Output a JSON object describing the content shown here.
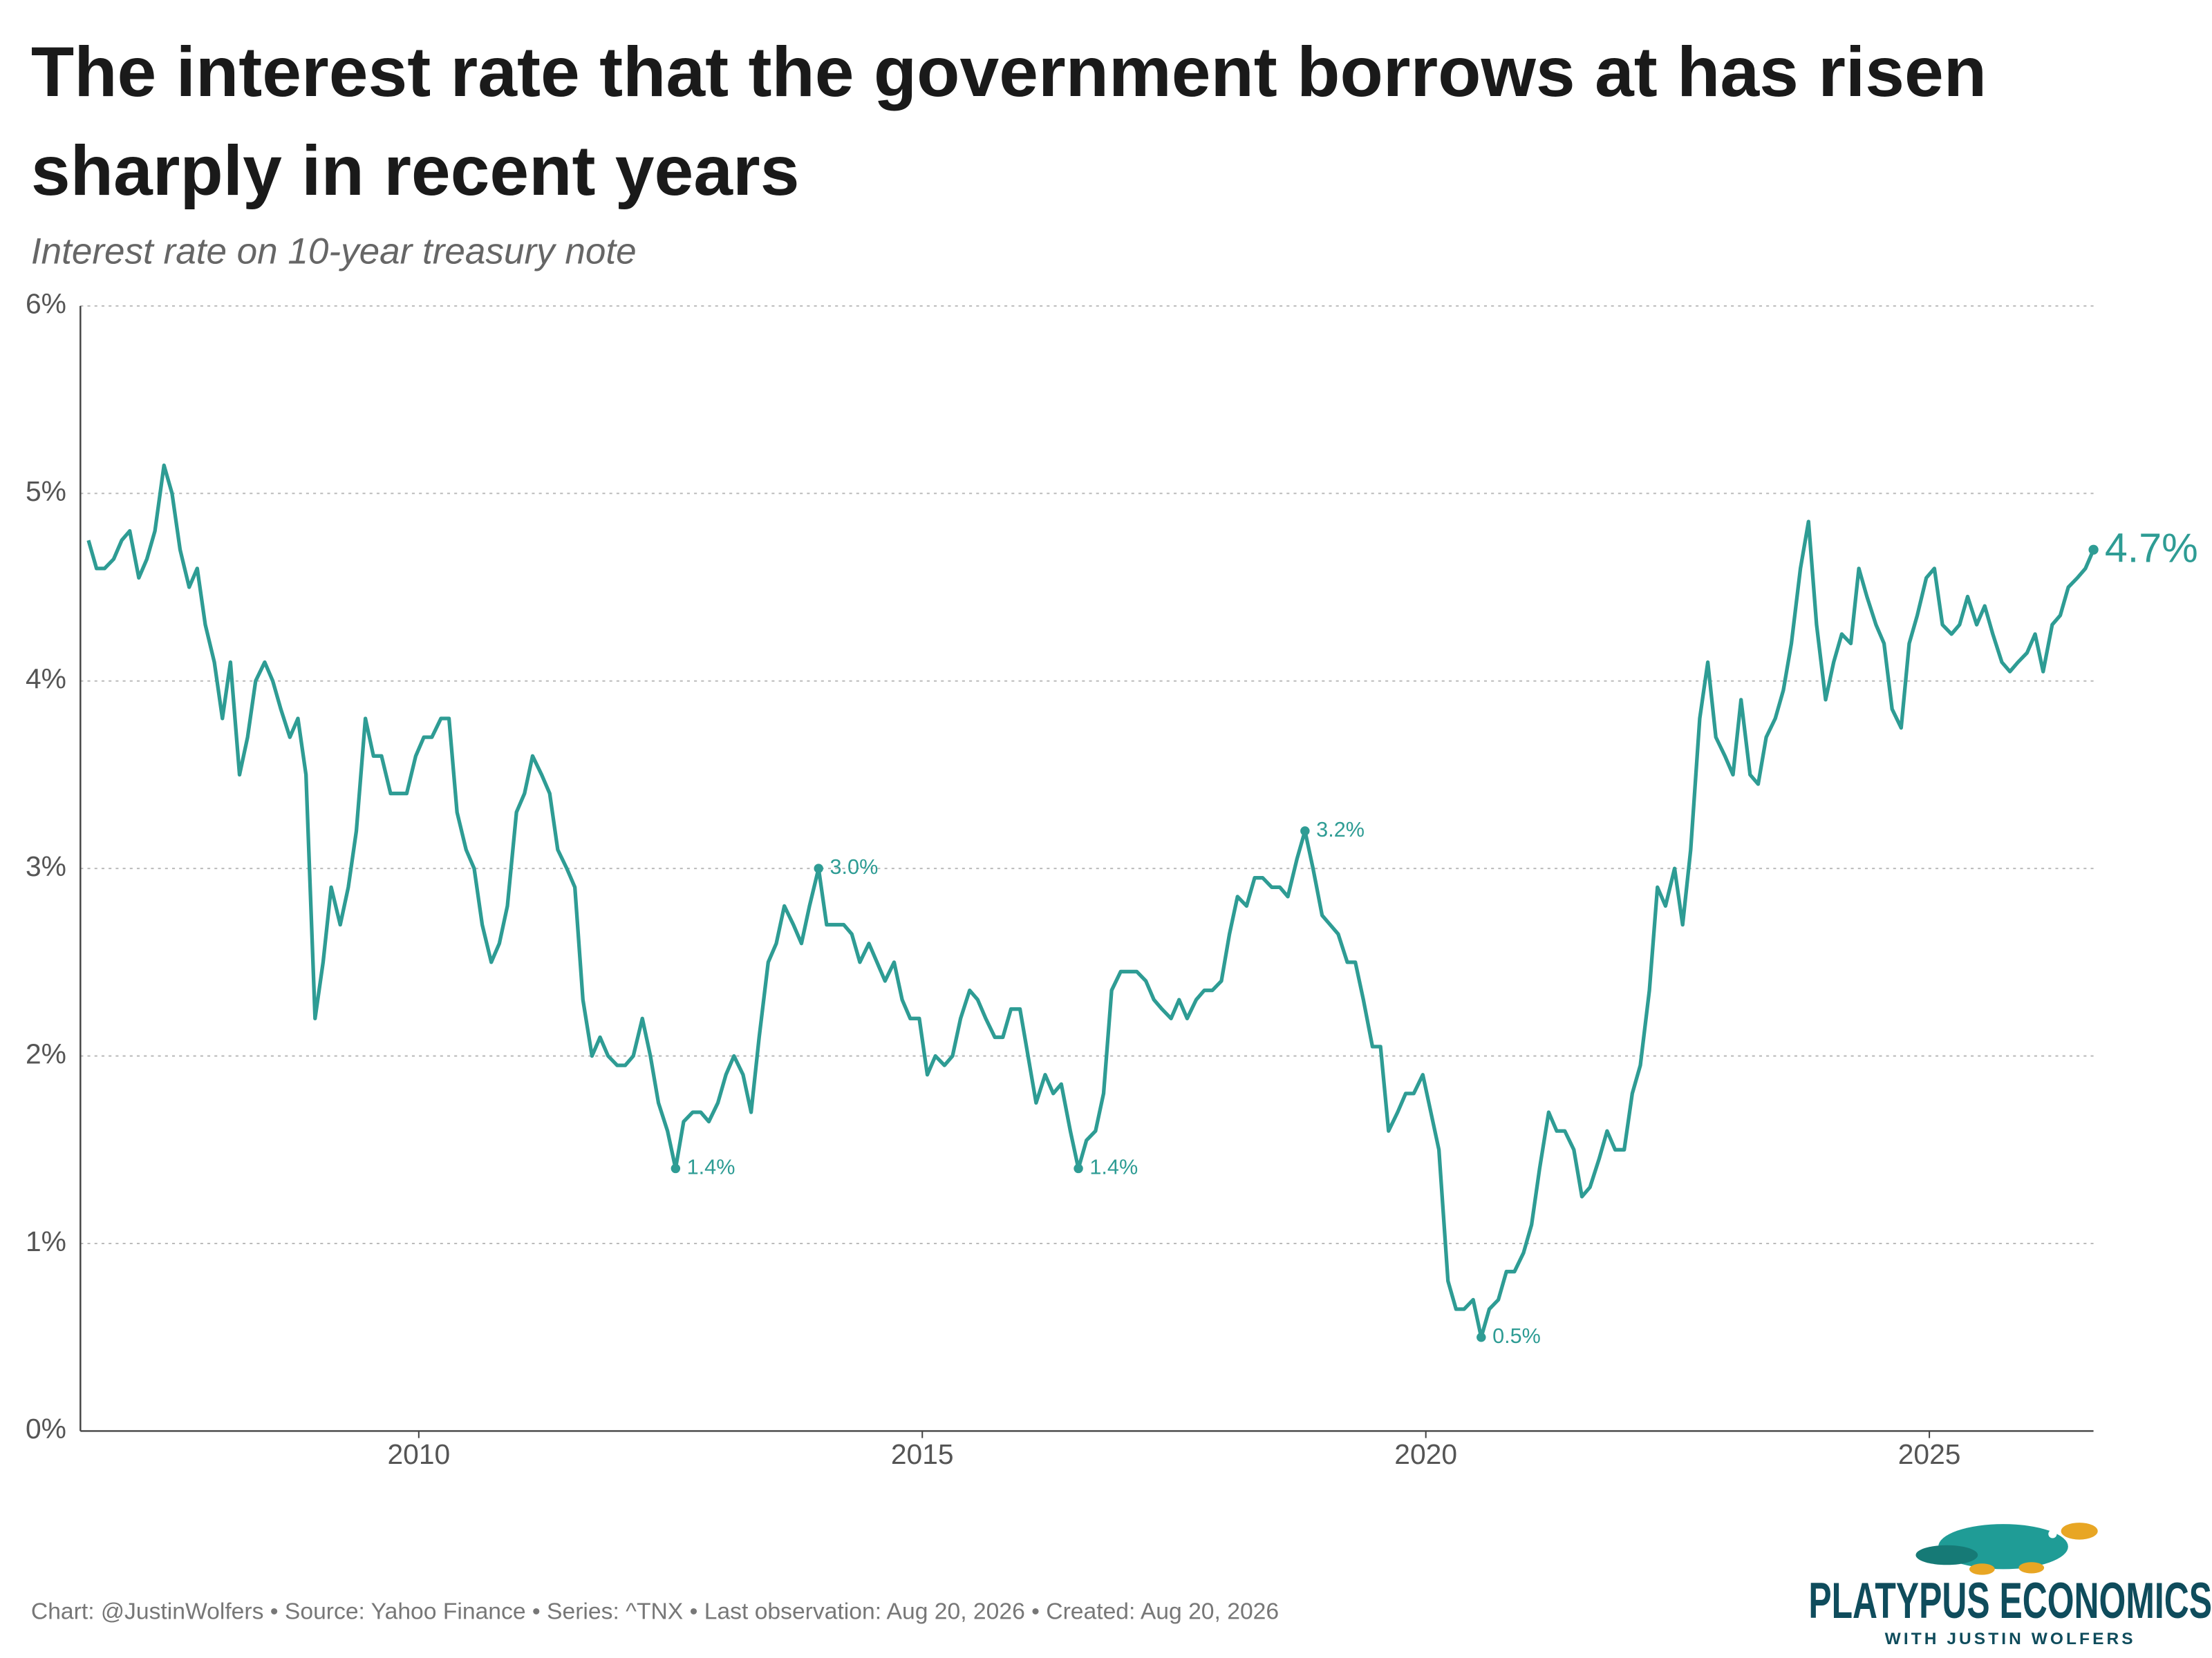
{
  "chart_data": {
    "type": "line",
    "title": "The interest rate that the government borrows at has risen sharply in recent years",
    "subtitle": "Interest rate on 10-year treasury note",
    "source": "Chart: @JustinWolfers • Source: Yahoo Finance • Series: ^TNX • Last observation: Aug 20, 2026 • Created: Aug 20, 2026",
    "brand": {
      "name": "PLATYPUS ECONOMICS",
      "tagline": "WITH JUSTIN WOLFERS"
    },
    "x": [
      2006.72,
      2006.8,
      2006.88,
      2006.97,
      2007.05,
      2007.13,
      2007.22,
      2007.3,
      2007.38,
      2007.47,
      2007.55,
      2007.63,
      2007.72,
      2007.8,
      2007.88,
      2007.97,
      2008.05,
      2008.13,
      2008.22,
      2008.3,
      2008.38,
      2008.47,
      2008.55,
      2008.63,
      2008.72,
      2008.8,
      2008.88,
      2008.97,
      2009.05,
      2009.13,
      2009.22,
      2009.3,
      2009.38,
      2009.47,
      2009.55,
      2009.63,
      2009.72,
      2009.8,
      2009.88,
      2009.97,
      2010.05,
      2010.13,
      2010.22,
      2010.3,
      2010.38,
      2010.47,
      2010.55,
      2010.63,
      2010.72,
      2010.8,
      2010.88,
      2010.97,
      2011.05,
      2011.13,
      2011.22,
      2011.3,
      2011.38,
      2011.47,
      2011.55,
      2011.63,
      2011.72,
      2011.8,
      2011.88,
      2011.97,
      2012.05,
      2012.13,
      2012.22,
      2012.3,
      2012.38,
      2012.47,
      2012.55,
      2012.63,
      2012.72,
      2012.8,
      2012.88,
      2012.97,
      2013.05,
      2013.13,
      2013.22,
      2013.3,
      2013.38,
      2013.47,
      2013.55,
      2013.63,
      2013.72,
      2013.8,
      2013.88,
      2013.97,
      2014.05,
      2014.13,
      2014.22,
      2014.3,
      2014.38,
      2014.47,
      2014.55,
      2014.63,
      2014.72,
      2014.8,
      2014.88,
      2014.97,
      2015.05,
      2015.13,
      2015.22,
      2015.3,
      2015.38,
      2015.47,
      2015.55,
      2015.63,
      2015.72,
      2015.8,
      2015.88,
      2015.97,
      2016.05,
      2016.13,
      2016.22,
      2016.3,
      2016.38,
      2016.47,
      2016.55,
      2016.63,
      2016.72,
      2016.8,
      2016.88,
      2016.97,
      2017.05,
      2017.13,
      2017.22,
      2017.3,
      2017.38,
      2017.47,
      2017.55,
      2017.63,
      2017.72,
      2017.8,
      2017.88,
      2017.97,
      2018.05,
      2018.13,
      2018.22,
      2018.3,
      2018.38,
      2018.47,
      2018.55,
      2018.63,
      2018.72,
      2018.8,
      2018.88,
      2018.97,
      2019.05,
      2019.13,
      2019.22,
      2019.3,
      2019.38,
      2019.47,
      2019.55,
      2019.63,
      2019.72,
      2019.8,
      2019.88,
      2019.97,
      2020.05,
      2020.13,
      2020.22,
      2020.3,
      2020.38,
      2020.47,
      2020.55,
      2020.63,
      2020.72,
      2020.8,
      2020.88,
      2020.97,
      2021.05,
      2021.13,
      2021.22,
      2021.3,
      2021.38,
      2021.47,
      2021.55,
      2021.63,
      2021.72,
      2021.8,
      2021.88,
      2021.97,
      2022.05,
      2022.13,
      2022.22,
      2022.3,
      2022.38,
      2022.47,
      2022.55,
      2022.63,
      2022.72,
      2022.8,
      2022.88,
      2022.97,
      2023.05,
      2023.13,
      2023.22,
      2023.3,
      2023.38,
      2023.47,
      2023.55,
      2023.63,
      2023.72,
      2023.8,
      2023.88,
      2023.97,
      2024.05,
      2024.13,
      2024.22,
      2024.3,
      2024.38,
      2024.47,
      2024.55,
      2024.63,
      2024.72,
      2024.8,
      2024.88,
      2024.97,
      2025.05,
      2025.13,
      2025.22,
      2025.3,
      2025.38,
      2025.47,
      2025.55,
      2025.63,
      2025.72,
      2025.8,
      2025.88,
      2025.97,
      2026.05,
      2026.13,
      2026.22,
      2026.3,
      2026.38,
      2026.47,
      2026.55,
      2026.63
    ],
    "series": [
      {
        "color": "#2e9c94",
        "values": [
          4.75,
          4.6,
          4.6,
          4.65,
          4.75,
          4.8,
          4.55,
          4.65,
          4.8,
          5.15,
          5.0,
          4.7,
          4.5,
          4.6,
          4.3,
          4.1,
          3.8,
          4.1,
          3.5,
          3.7,
          4.0,
          4.1,
          4.0,
          3.85,
          3.7,
          3.8,
          3.5,
          2.2,
          2.5,
          2.9,
          2.7,
          2.9,
          3.2,
          3.8,
          3.6,
          3.6,
          3.4,
          3.4,
          3.4,
          3.6,
          3.7,
          3.7,
          3.8,
          3.8,
          3.3,
          3.1,
          3.0,
          2.7,
          2.5,
          2.6,
          2.8,
          3.3,
          3.4,
          3.6,
          3.5,
          3.4,
          3.1,
          3.0,
          2.9,
          2.3,
          2.0,
          2.1,
          2.0,
          1.95,
          1.95,
          2.0,
          2.2,
          2.0,
          1.75,
          1.6,
          1.4,
          1.65,
          1.7,
          1.7,
          1.65,
          1.75,
          1.9,
          2.0,
          1.9,
          1.7,
          2.1,
          2.5,
          2.6,
          2.8,
          2.7,
          2.6,
          2.8,
          3.0,
          2.7,
          2.7,
          2.7,
          2.65,
          2.5,
          2.6,
          2.5,
          2.4,
          2.5,
          2.3,
          2.2,
          2.2,
          1.9,
          2.0,
          1.95,
          2.0,
          2.2,
          2.35,
          2.3,
          2.2,
          2.1,
          2.1,
          2.25,
          2.25,
          2.0,
          1.75,
          1.9,
          1.8,
          1.85,
          1.6,
          1.4,
          1.55,
          1.6,
          1.8,
          2.35,
          2.45,
          2.45,
          2.45,
          2.4,
          2.3,
          2.25,
          2.2,
          2.3,
          2.2,
          2.3,
          2.35,
          2.35,
          2.4,
          2.65,
          2.85,
          2.8,
          2.95,
          2.95,
          2.9,
          2.9,
          2.85,
          3.05,
          3.2,
          3.0,
          2.75,
          2.7,
          2.65,
          2.5,
          2.5,
          2.3,
          2.05,
          2.05,
          1.6,
          1.7,
          1.8,
          1.8,
          1.9,
          1.7,
          1.5,
          0.8,
          0.65,
          0.65,
          0.7,
          0.5,
          0.65,
          0.7,
          0.85,
          0.85,
          0.95,
          1.1,
          1.4,
          1.7,
          1.6,
          1.6,
          1.5,
          1.25,
          1.3,
          1.45,
          1.6,
          1.5,
          1.5,
          1.8,
          1.95,
          2.35,
          2.9,
          2.8,
          3.0,
          2.7,
          3.1,
          3.8,
          4.1,
          3.7,
          3.6,
          3.5,
          3.9,
          3.5,
          3.45,
          3.7,
          3.8,
          3.95,
          4.2,
          4.6,
          4.85,
          4.3,
          3.9,
          4.1,
          4.25,
          4.2,
          4.6,
          4.45,
          4.3,
          4.2,
          3.85,
          3.75,
          4.2,
          4.35,
          4.55,
          4.6,
          4.3,
          4.25,
          4.3,
          4.45,
          4.3,
          4.4,
          4.25,
          4.1,
          4.05,
          4.1,
          4.15,
          4.25,
          4.05,
          4.3,
          4.35,
          4.5,
          4.55,
          4.6,
          4.7
        ]
      }
    ],
    "annotations": [
      {
        "x": 2012.55,
        "value": 1.4,
        "label": "1.4%"
      },
      {
        "x": 2013.97,
        "value": 3.0,
        "label": "3.0%"
      },
      {
        "x": 2016.55,
        "value": 1.4,
        "label": "1.4%"
      },
      {
        "x": 2018.8,
        "value": 3.2,
        "label": "3.2%"
      },
      {
        "x": 2020.55,
        "value": 0.5,
        "label": "0.5%"
      }
    ],
    "end_label": {
      "x": 2026.63,
      "value": 4.7,
      "label": "4.7%"
    },
    "xlim": [
      2006.64,
      2026.63
    ],
    "xticks": [
      2010,
      2015,
      2020,
      2025
    ],
    "ylim": [
      0,
      6
    ],
    "yticks": [
      {
        "value": 0,
        "label": "0%"
      },
      {
        "value": 1,
        "label": "1%"
      },
      {
        "value": 2,
        "label": "2%"
      },
      {
        "value": 3,
        "label": "3%"
      },
      {
        "value": 4,
        "label": "4%"
      },
      {
        "value": 5,
        "label": "5%"
      },
      {
        "value": 6,
        "label": "6%"
      }
    ],
    "grid": true
  }
}
